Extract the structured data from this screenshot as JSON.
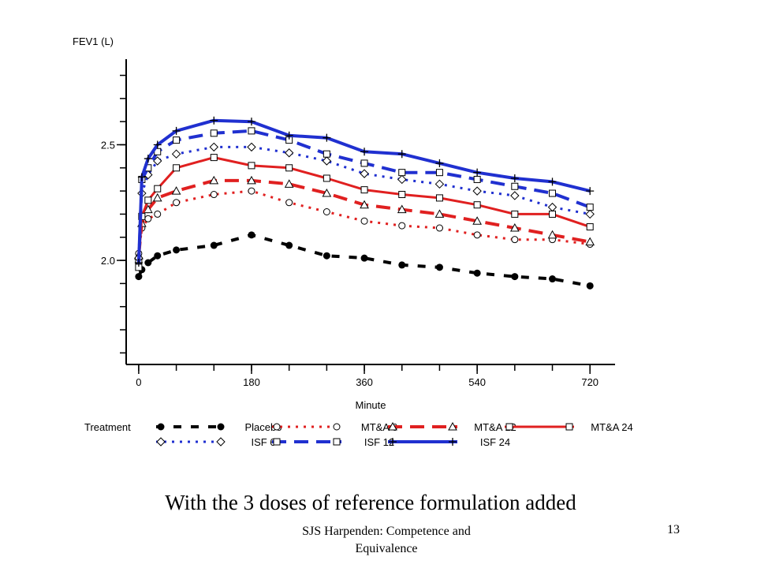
{
  "chart_data": {
    "type": "line",
    "ylabel": "FEV1 (L)",
    "xlabel": "Minute",
    "xlim": [
      -20,
      760
    ],
    "ylim": [
      1.55,
      2.87
    ],
    "xticks": [
      0,
      180,
      360,
      540,
      720
    ],
    "yticks": [
      2.0,
      2.5
    ],
    "legend_title": "Treatment",
    "legend_position": "bottom",
    "series": [
      {
        "name": "Placebo",
        "color": "#000000",
        "dash": "10,12",
        "width": 4,
        "marker": "dot",
        "x": [
          0,
          5,
          15,
          30,
          60,
          120,
          180,
          240,
          300,
          360,
          420,
          480,
          540,
          600,
          660,
          720
        ],
        "y": [
          1.93,
          1.96,
          1.99,
          2.02,
          2.045,
          2.065,
          2.11,
          2.065,
          2.02,
          2.01,
          1.98,
          1.97,
          1.945,
          1.93,
          1.92,
          1.89
        ]
      },
      {
        "name": "MT&A 6",
        "color": "#e02020",
        "dash": "3,7",
        "width": 3,
        "marker": "circle",
        "x": [
          0,
          5,
          15,
          30,
          60,
          120,
          180,
          240,
          300,
          360,
          420,
          480,
          540,
          600,
          660,
          720
        ],
        "y": [
          2.03,
          2.14,
          2.18,
          2.2,
          2.25,
          2.285,
          2.3,
          2.25,
          2.21,
          2.17,
          2.15,
          2.14,
          2.11,
          2.09,
          2.09,
          2.07
        ]
      },
      {
        "name": "MT&A 12",
        "color": "#e02020",
        "dash": "18,10",
        "width": 4,
        "marker": "triangle",
        "x": [
          0,
          5,
          15,
          30,
          60,
          120,
          180,
          240,
          300,
          360,
          420,
          480,
          540,
          600,
          660,
          720
        ],
        "y": [
          2.02,
          2.16,
          2.22,
          2.27,
          2.3,
          2.345,
          2.345,
          2.33,
          2.29,
          2.24,
          2.22,
          2.2,
          2.17,
          2.14,
          2.11,
          2.08
        ]
      },
      {
        "name": "MT&A 24",
        "color": "#e02020",
        "dash": "",
        "width": 3,
        "marker": "square",
        "x": [
          0,
          5,
          15,
          30,
          60,
          120,
          180,
          240,
          300,
          360,
          420,
          480,
          540,
          600,
          660,
          720
        ],
        "y": [
          2.0,
          2.19,
          2.26,
          2.31,
          2.4,
          2.445,
          2.41,
          2.4,
          2.355,
          2.305,
          2.285,
          2.27,
          2.24,
          2.2,
          2.2,
          2.145
        ]
      },
      {
        "name": "ISF 6",
        "color": "#2030d0",
        "dash": "3,7",
        "width": 3,
        "marker": "diamond",
        "x": [
          0,
          5,
          15,
          30,
          60,
          120,
          180,
          240,
          300,
          360,
          420,
          480,
          540,
          600,
          660,
          720
        ],
        "y": [
          2.01,
          2.29,
          2.37,
          2.43,
          2.46,
          2.49,
          2.49,
          2.465,
          2.43,
          2.375,
          2.35,
          2.33,
          2.3,
          2.28,
          2.23,
          2.2
        ]
      },
      {
        "name": "ISF 12",
        "color": "#2030d0",
        "dash": "18,10",
        "width": 4,
        "marker": "square",
        "x": [
          0,
          5,
          15,
          30,
          60,
          120,
          180,
          240,
          300,
          360,
          420,
          480,
          540,
          600,
          660,
          720
        ],
        "y": [
          1.97,
          2.35,
          2.4,
          2.47,
          2.52,
          2.55,
          2.56,
          2.52,
          2.46,
          2.42,
          2.38,
          2.38,
          2.35,
          2.32,
          2.29,
          2.23
        ]
      },
      {
        "name": "ISF 24",
        "color": "#2030d0",
        "dash": "",
        "width": 4,
        "marker": "plus",
        "x": [
          0,
          5,
          15,
          30,
          60,
          120,
          180,
          240,
          300,
          360,
          420,
          480,
          540,
          600,
          660,
          720
        ],
        "y": [
          1.99,
          2.36,
          2.44,
          2.5,
          2.56,
          2.605,
          2.6,
          2.54,
          2.53,
          2.47,
          2.46,
          2.42,
          2.38,
          2.355,
          2.34,
          2.3
        ]
      }
    ]
  },
  "caption": "With the 3 doses of reference formulation added",
  "footer": "SJS Harpenden: Competence and Equivalence",
  "page_number": "13"
}
